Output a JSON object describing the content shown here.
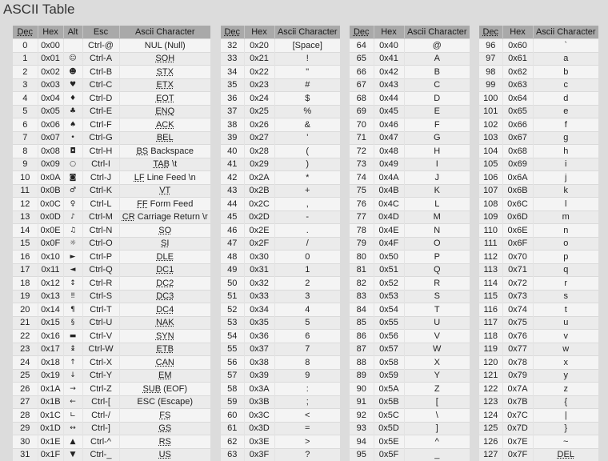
{
  "page_title": "ASCII Table",
  "headers": {
    "t1": [
      "Dec",
      "Hex",
      "Alt",
      "Esc",
      "Ascii Character"
    ],
    "t2": [
      "Dec",
      "Hex",
      "Ascii Character"
    ],
    "t3": [
      "Dec",
      "Hex",
      "Ascii Character"
    ],
    "t4": [
      "Dec",
      "Hex",
      "Ascii Character"
    ]
  },
  "table1": [
    {
      "dec": "0",
      "hex": "0x00",
      "alt": "",
      "esc": "Ctrl-@",
      "abbr": "",
      "char": "NUL (Null)"
    },
    {
      "dec": "1",
      "hex": "0x01",
      "alt": "☺",
      "esc": "Ctrl-A",
      "abbr": "SOH",
      "char": ""
    },
    {
      "dec": "2",
      "hex": "0x02",
      "alt": "☻",
      "esc": "Ctrl-B",
      "abbr": "STX",
      "char": ""
    },
    {
      "dec": "3",
      "hex": "0x03",
      "alt": "♥",
      "esc": "Ctrl-C",
      "abbr": "ETX",
      "char": ""
    },
    {
      "dec": "4",
      "hex": "0x04",
      "alt": "♦",
      "esc": "Ctrl-D",
      "abbr": "EOT",
      "char": ""
    },
    {
      "dec": "5",
      "hex": "0x05",
      "alt": "♣",
      "esc": "Ctrl-E",
      "abbr": "ENQ",
      "char": ""
    },
    {
      "dec": "6",
      "hex": "0x06",
      "alt": "♠",
      "esc": "Ctrl-F",
      "abbr": "ACK",
      "char": ""
    },
    {
      "dec": "7",
      "hex": "0x07",
      "alt": "•",
      "esc": "Ctrl-G",
      "abbr": "BEL",
      "char": ""
    },
    {
      "dec": "8",
      "hex": "0x08",
      "alt": "◘",
      "esc": "Ctrl-H",
      "abbr": "BS",
      "char": " Backspace"
    },
    {
      "dec": "9",
      "hex": "0x09",
      "alt": "○",
      "esc": "Ctrl-I",
      "abbr": "TAB",
      "char": " \\t"
    },
    {
      "dec": "10",
      "hex": "0x0A",
      "alt": "◙",
      "esc": "Ctrl-J",
      "abbr": "LF",
      "char": " Line Feed \\n"
    },
    {
      "dec": "11",
      "hex": "0x0B",
      "alt": "♂",
      "esc": "Ctrl-K",
      "abbr": "VT",
      "char": ""
    },
    {
      "dec": "12",
      "hex": "0x0C",
      "alt": "♀",
      "esc": "Ctrl-L",
      "abbr": "FF",
      "char": " Form Feed"
    },
    {
      "dec": "13",
      "hex": "0x0D",
      "alt": "♪",
      "esc": "Ctrl-M",
      "abbr": "CR",
      "char": " Carriage Return \\r"
    },
    {
      "dec": "14",
      "hex": "0x0E",
      "alt": "♫",
      "esc": "Ctrl-N",
      "abbr": "SO",
      "char": ""
    },
    {
      "dec": "15",
      "hex": "0x0F",
      "alt": "☼",
      "esc": "Ctrl-O",
      "abbr": "SI",
      "char": ""
    },
    {
      "dec": "16",
      "hex": "0x10",
      "alt": "►",
      "esc": "Ctrl-P",
      "abbr": "DLE",
      "char": ""
    },
    {
      "dec": "17",
      "hex": "0x11",
      "alt": "◄",
      "esc": "Ctrl-Q",
      "abbr": "DC1",
      "char": ""
    },
    {
      "dec": "18",
      "hex": "0x12",
      "alt": "↕",
      "esc": "Ctrl-R",
      "abbr": "DC2",
      "char": ""
    },
    {
      "dec": "19",
      "hex": "0x13",
      "alt": "‼",
      "esc": "Ctrl-S",
      "abbr": "DC3",
      "char": ""
    },
    {
      "dec": "20",
      "hex": "0x14",
      "alt": "¶",
      "esc": "Ctrl-T",
      "abbr": "DC4",
      "char": ""
    },
    {
      "dec": "21",
      "hex": "0x15",
      "alt": "§",
      "esc": "Ctrl-U",
      "abbr": "NAK",
      "char": ""
    },
    {
      "dec": "22",
      "hex": "0x16",
      "alt": "▬",
      "esc": "Ctrl-V",
      "abbr": "SYN",
      "char": ""
    },
    {
      "dec": "23",
      "hex": "0x17",
      "alt": "↨",
      "esc": "Ctrl-W",
      "abbr": "ETB",
      "char": ""
    },
    {
      "dec": "24",
      "hex": "0x18",
      "alt": "↑",
      "esc": "Ctrl-X",
      "abbr": "CAN",
      "char": ""
    },
    {
      "dec": "25",
      "hex": "0x19",
      "alt": "↓",
      "esc": "Ctrl-Y",
      "abbr": "EM",
      "char": ""
    },
    {
      "dec": "26",
      "hex": "0x1A",
      "alt": "→",
      "esc": "Ctrl-Z",
      "abbr": "SUB",
      "char": " (EOF)"
    },
    {
      "dec": "27",
      "hex": "0x1B",
      "alt": "←",
      "esc": "Ctrl-[",
      "abbr": "",
      "char": "ESC (Escape)"
    },
    {
      "dec": "28",
      "hex": "0x1C",
      "alt": "∟",
      "esc": "Ctrl-/",
      "abbr": "FS",
      "char": ""
    },
    {
      "dec": "29",
      "hex": "0x1D",
      "alt": "↔",
      "esc": "Ctrl-]",
      "abbr": "GS",
      "char": ""
    },
    {
      "dec": "30",
      "hex": "0x1E",
      "alt": "▲",
      "esc": "Ctrl-^",
      "abbr": "RS",
      "char": ""
    },
    {
      "dec": "31",
      "hex": "0x1F",
      "alt": "▼",
      "esc": "Ctrl-_",
      "abbr": "US",
      "char": ""
    }
  ],
  "table2": [
    {
      "dec": "32",
      "hex": "0x20",
      "char": "[Space]"
    },
    {
      "dec": "33",
      "hex": "0x21",
      "char": "!"
    },
    {
      "dec": "34",
      "hex": "0x22",
      "char": "\""
    },
    {
      "dec": "35",
      "hex": "0x23",
      "char": "#"
    },
    {
      "dec": "36",
      "hex": "0x24",
      "char": "$"
    },
    {
      "dec": "37",
      "hex": "0x25",
      "char": "%"
    },
    {
      "dec": "38",
      "hex": "0x26",
      "char": "&"
    },
    {
      "dec": "39",
      "hex": "0x27",
      "char": "'"
    },
    {
      "dec": "40",
      "hex": "0x28",
      "char": "("
    },
    {
      "dec": "41",
      "hex": "0x29",
      "char": ")"
    },
    {
      "dec": "42",
      "hex": "0x2A",
      "char": "*"
    },
    {
      "dec": "43",
      "hex": "0x2B",
      "char": "+"
    },
    {
      "dec": "44",
      "hex": "0x2C",
      "char": ","
    },
    {
      "dec": "45",
      "hex": "0x2D",
      "char": "-"
    },
    {
      "dec": "46",
      "hex": "0x2E",
      "char": "."
    },
    {
      "dec": "47",
      "hex": "0x2F",
      "char": "/"
    },
    {
      "dec": "48",
      "hex": "0x30",
      "char": "0"
    },
    {
      "dec": "49",
      "hex": "0x31",
      "char": "1"
    },
    {
      "dec": "50",
      "hex": "0x32",
      "char": "2"
    },
    {
      "dec": "51",
      "hex": "0x33",
      "char": "3"
    },
    {
      "dec": "52",
      "hex": "0x34",
      "char": "4"
    },
    {
      "dec": "53",
      "hex": "0x35",
      "char": "5"
    },
    {
      "dec": "54",
      "hex": "0x36",
      "char": "6"
    },
    {
      "dec": "55",
      "hex": "0x37",
      "char": "7"
    },
    {
      "dec": "56",
      "hex": "0x38",
      "char": "8"
    },
    {
      "dec": "57",
      "hex": "0x39",
      "char": "9"
    },
    {
      "dec": "58",
      "hex": "0x3A",
      "char": ":"
    },
    {
      "dec": "59",
      "hex": "0x3B",
      "char": ";"
    },
    {
      "dec": "60",
      "hex": "0x3C",
      "char": "<"
    },
    {
      "dec": "61",
      "hex": "0x3D",
      "char": "="
    },
    {
      "dec": "62",
      "hex": "0x3E",
      "char": ">"
    },
    {
      "dec": "63",
      "hex": "0x3F",
      "char": "?"
    }
  ],
  "table3": [
    {
      "dec": "64",
      "hex": "0x40",
      "char": "@"
    },
    {
      "dec": "65",
      "hex": "0x41",
      "char": "A"
    },
    {
      "dec": "66",
      "hex": "0x42",
      "char": "B"
    },
    {
      "dec": "67",
      "hex": "0x43",
      "char": "C"
    },
    {
      "dec": "68",
      "hex": "0x44",
      "char": "D"
    },
    {
      "dec": "69",
      "hex": "0x45",
      "char": "E"
    },
    {
      "dec": "70",
      "hex": "0x46",
      "char": "F"
    },
    {
      "dec": "71",
      "hex": "0x47",
      "char": "G"
    },
    {
      "dec": "72",
      "hex": "0x48",
      "char": "H"
    },
    {
      "dec": "73",
      "hex": "0x49",
      "char": "I"
    },
    {
      "dec": "74",
      "hex": "0x4A",
      "char": "J"
    },
    {
      "dec": "75",
      "hex": "0x4B",
      "char": "K"
    },
    {
      "dec": "76",
      "hex": "0x4C",
      "char": "L"
    },
    {
      "dec": "77",
      "hex": "0x4D",
      "char": "M"
    },
    {
      "dec": "78",
      "hex": "0x4E",
      "char": "N"
    },
    {
      "dec": "79",
      "hex": "0x4F",
      "char": "O"
    },
    {
      "dec": "80",
      "hex": "0x50",
      "char": "P"
    },
    {
      "dec": "81",
      "hex": "0x51",
      "char": "Q"
    },
    {
      "dec": "82",
      "hex": "0x52",
      "char": "R"
    },
    {
      "dec": "83",
      "hex": "0x53",
      "char": "S"
    },
    {
      "dec": "84",
      "hex": "0x54",
      "char": "T"
    },
    {
      "dec": "85",
      "hex": "0x55",
      "char": "U"
    },
    {
      "dec": "86",
      "hex": "0x56",
      "char": "V"
    },
    {
      "dec": "87",
      "hex": "0x57",
      "char": "W"
    },
    {
      "dec": "88",
      "hex": "0x58",
      "char": "X"
    },
    {
      "dec": "89",
      "hex": "0x59",
      "char": "Y"
    },
    {
      "dec": "90",
      "hex": "0x5A",
      "char": "Z"
    },
    {
      "dec": "91",
      "hex": "0x5B",
      "char": "["
    },
    {
      "dec": "92",
      "hex": "0x5C",
      "char": "\\"
    },
    {
      "dec": "93",
      "hex": "0x5D",
      "char": "]"
    },
    {
      "dec": "94",
      "hex": "0x5E",
      "char": "^"
    },
    {
      "dec": "95",
      "hex": "0x5F",
      "char": "_"
    }
  ],
  "table4": [
    {
      "dec": "96",
      "hex": "0x60",
      "char": "`"
    },
    {
      "dec": "97",
      "hex": "0x61",
      "char": "a"
    },
    {
      "dec": "98",
      "hex": "0x62",
      "char": "b"
    },
    {
      "dec": "99",
      "hex": "0x63",
      "char": "c"
    },
    {
      "dec": "100",
      "hex": "0x64",
      "char": "d"
    },
    {
      "dec": "101",
      "hex": "0x65",
      "char": "e"
    },
    {
      "dec": "102",
      "hex": "0x66",
      "char": "f"
    },
    {
      "dec": "103",
      "hex": "0x67",
      "char": "g"
    },
    {
      "dec": "104",
      "hex": "0x68",
      "char": "h"
    },
    {
      "dec": "105",
      "hex": "0x69",
      "char": "i"
    },
    {
      "dec": "106",
      "hex": "0x6A",
      "char": "j"
    },
    {
      "dec": "107",
      "hex": "0x6B",
      "char": "k"
    },
    {
      "dec": "108",
      "hex": "0x6C",
      "char": "l"
    },
    {
      "dec": "109",
      "hex": "0x6D",
      "char": "m"
    },
    {
      "dec": "110",
      "hex": "0x6E",
      "char": "n"
    },
    {
      "dec": "111",
      "hex": "0x6F",
      "char": "o"
    },
    {
      "dec": "112",
      "hex": "0x70",
      "char": "p"
    },
    {
      "dec": "113",
      "hex": "0x71",
      "char": "q"
    },
    {
      "dec": "114",
      "hex": "0x72",
      "char": "r"
    },
    {
      "dec": "115",
      "hex": "0x73",
      "char": "s"
    },
    {
      "dec": "116",
      "hex": "0x74",
      "char": "t"
    },
    {
      "dec": "117",
      "hex": "0x75",
      "char": "u"
    },
    {
      "dec": "118",
      "hex": "0x76",
      "char": "v"
    },
    {
      "dec": "119",
      "hex": "0x77",
      "char": "w"
    },
    {
      "dec": "120",
      "hex": "0x78",
      "char": "x"
    },
    {
      "dec": "121",
      "hex": "0x79",
      "char": "y"
    },
    {
      "dec": "122",
      "hex": "0x7A",
      "char": "z"
    },
    {
      "dec": "123",
      "hex": "0x7B",
      "char": "{"
    },
    {
      "dec": "124",
      "hex": "0x7C",
      "char": "|"
    },
    {
      "dec": "125",
      "hex": "0x7D",
      "char": "}"
    },
    {
      "dec": "126",
      "hex": "0x7E",
      "char": "~"
    },
    {
      "dec": "127",
      "hex": "0x7F",
      "char": "",
      "abbr": "DEL"
    }
  ]
}
